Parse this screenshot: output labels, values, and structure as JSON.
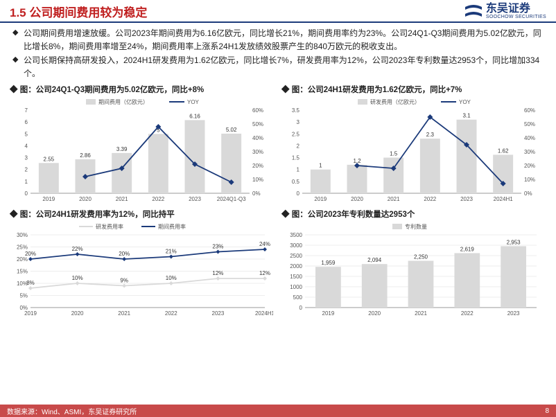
{
  "header": {
    "title": "1.5 公司期间费用较为稳定",
    "brand": "东吴证券",
    "brand_sub": "SOOCHOW SECURITIES"
  },
  "body": {
    "p1": "公司期间费用增速放缓。公司2023年期间费用为6.16亿欧元，同比增长21%，期间费用率约为23%。公司24Q1-Q3期间费用为5.02亿欧元，同比增长8%，期间费用率增至24%，期间费用率上涨系24H1发放绩效股票产生的840万欧元的税收支出。",
    "p2": "公司长期保持高研发投入，2024H1研发费用为1.62亿欧元，同比增长7%，研发费用率为12%，公司2023年专利数量达2953个，同比增加334个。"
  },
  "charts": {
    "c1": {
      "caption": "图：公司24Q1-Q3期间费用为5.02亿欧元，同比+8%",
      "legend_bar": "期间费用（亿欧元）",
      "legend_line": "YOY",
      "categories": [
        "2019",
        "2020",
        "2021",
        "2022",
        "2023",
        "2024Q1-Q3"
      ],
      "bars": [
        2.55,
        2.86,
        3.39,
        5.0,
        6.16,
        5.02
      ],
      "line_pct": [
        null,
        12,
        18,
        48,
        21,
        8
      ],
      "left_ticks": [
        0,
        1,
        2,
        3,
        4,
        5,
        6,
        7
      ],
      "right_ticks": [
        "0%",
        "10%",
        "20%",
        "30%",
        "40%",
        "50%",
        "60%"
      ],
      "right_min": 0,
      "right_max": 60
    },
    "c2": {
      "caption": "图：公司24H1研发费用为1.62亿欧元，同比+7%",
      "legend_bar": "研发费用（亿欧元）",
      "legend_line": "YOY",
      "categories": [
        "2019",
        "2020",
        "2021",
        "2022",
        "2023",
        "2024H1"
      ],
      "bars": [
        1.0,
        1.2,
        1.5,
        2.3,
        3.1,
        1.62
      ],
      "line_pct": [
        null,
        20,
        18,
        55,
        35,
        7
      ],
      "left_ticks": [
        0,
        0.5,
        1,
        1.5,
        2,
        2.5,
        3,
        3.5
      ],
      "right_ticks": [
        "0%",
        "10%",
        "20%",
        "30%",
        "40%",
        "50%",
        "60%"
      ],
      "right_min": 0,
      "right_max": 60
    },
    "c3": {
      "caption": "图：公司24H1研发费用率为12%，同比持平",
      "legend_a": "研发费用率",
      "legend_b": "期间费用率",
      "categories": [
        "2019",
        "2020",
        "2021",
        "2022",
        "2023",
        "2024H1"
      ],
      "line_rd": [
        8,
        10,
        9,
        10,
        12,
        12
      ],
      "line_pe": [
        20,
        22,
        20,
        21,
        23,
        24
      ],
      "ticks": [
        "0%",
        "5%",
        "10%",
        "15%",
        "20%",
        "25%",
        "30%"
      ],
      "y_min": 0,
      "y_max": 30
    },
    "c4": {
      "caption": "图：公司2023年专利数量达2953个",
      "legend_bar": "专利数量",
      "categories": [
        "2019",
        "2020",
        "2021",
        "2022",
        "2023"
      ],
      "bars": [
        1959,
        2094,
        2250,
        2619,
        2953
      ],
      "ticks": [
        0,
        500,
        1000,
        1500,
        2000,
        2500,
        3000,
        3500
      ],
      "labels": [
        "1,959",
        "2,094",
        "2,250",
        "2,619",
        "2,953"
      ]
    }
  },
  "footer": {
    "source": "数据来源：Wind、ASMI，东吴证券研究所",
    "page": "8"
  },
  "colors": {
    "brand": "#1b3a7a",
    "title": "#c02020",
    "bar": "#d9d9d9",
    "footer": "#c84a4a"
  }
}
